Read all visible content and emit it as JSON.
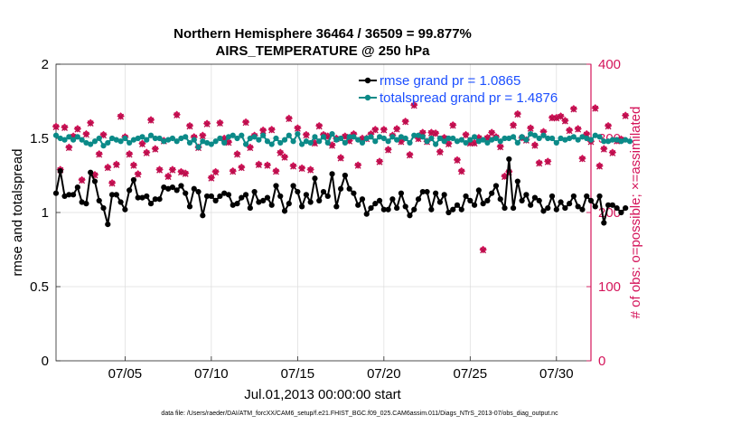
{
  "chart_data": {
    "type": "line",
    "title": [
      "Northern Hemisphere 36464 / 36509 = 99.877%",
      "AIRS_TEMPERATURE @ 250 hPa"
    ],
    "xlabel": "Jul.01,2013 00:00:00 start",
    "ylabel_left": "rmse and totalspread",
    "ylabel_right": "# of obs: o=possible; ×=assimilated",
    "xlim": [
      1,
      32
    ],
    "ylim_left": [
      0,
      2
    ],
    "ylim_right": [
      0,
      400
    ],
    "x_ticks": [
      {
        "value": 5,
        "label": "07/05"
      },
      {
        "value": 10,
        "label": "07/10"
      },
      {
        "value": 15,
        "label": "07/15"
      },
      {
        "value": 20,
        "label": "07/20"
      },
      {
        "value": 25,
        "label": "07/25"
      },
      {
        "value": 30,
        "label": "07/30"
      }
    ],
    "y_ticks_left": [
      "0",
      "0.5",
      "1",
      "1.5",
      "2"
    ],
    "y_ticks_right": [
      "0",
      "100",
      "200",
      "300",
      "400"
    ],
    "colors": {
      "rmse": "#000000",
      "spread": "#0b8a88",
      "obs": "#d4145a",
      "legend_text": "#1c4fff",
      "grid": "#dcdcdc"
    },
    "series": [
      {
        "name": "rmse grand pr = 1.0865",
        "x_start": 1.0,
        "x_step": 0.25,
        "values": [
          1.13,
          1.28,
          1.11,
          1.12,
          1.12,
          1.17,
          1.07,
          1.06,
          1.27,
          1.21,
          1.08,
          1.03,
          0.92,
          1.12,
          1.12,
          1.07,
          1.02,
          1.15,
          1.22,
          1.1,
          1.1,
          1.11,
          1.06,
          1.09,
          1.09,
          1.17,
          1.16,
          1.17,
          1.15,
          1.18,
          1.13,
          1.04,
          1.16,
          1.14,
          0.98,
          1.11,
          1.11,
          1.08,
          1.11,
          1.13,
          1.12,
          1.05,
          1.06,
          1.1,
          1.12,
          1.03,
          1.14,
          1.07,
          1.08,
          1.1,
          1.05,
          1.18,
          1.11,
          1.01,
          1.06,
          1.18,
          1.14,
          1.04,
          1.12,
          1.07,
          1.23,
          1.08,
          1.14,
          1.11,
          1.26,
          1.04,
          1.16,
          1.25,
          1.16,
          1.13,
          1.05,
          1.09,
          0.99,
          1.03,
          1.06,
          1.08,
          1.02,
          1.02,
          1.09,
          1.03,
          1.13,
          1.04,
          0.98,
          1.02,
          1.09,
          1.14,
          1.14,
          1.02,
          1.13,
          1.07,
          1.12,
          1.0,
          1.02,
          1.05,
          1.02,
          1.11,
          1.08,
          1.05,
          1.15,
          1.06,
          1.08,
          1.13,
          1.18,
          1.09,
          1.03,
          1.36,
          1.03,
          1.21,
          1.08,
          1.12,
          1.05,
          1.1,
          1.08,
          1.01,
          1.03,
          1.11,
          1.02,
          1.07,
          1.03,
          1.06,
          1.11,
          1.04,
          1.02,
          1.11,
          1.08,
          1.04,
          1.11,
          0.93,
          1.05,
          1.05,
          1.03,
          1.0,
          1.03
        ]
      },
      {
        "name": "totalspread grand pr = 1.4876",
        "x_start": 1.0,
        "x_step": 0.25,
        "values": [
          1.52,
          1.5,
          1.49,
          1.51,
          1.49,
          1.51,
          1.49,
          1.47,
          1.46,
          1.48,
          1.5,
          1.45,
          1.47,
          1.5,
          1.49,
          1.48,
          1.5,
          1.47,
          1.49,
          1.5,
          1.51,
          1.49,
          1.52,
          1.5,
          1.5,
          1.48,
          1.49,
          1.5,
          1.48,
          1.5,
          1.51,
          1.47,
          1.49,
          1.44,
          1.48,
          1.47,
          1.46,
          1.48,
          1.5,
          1.47,
          1.51,
          1.52,
          1.5,
          1.52,
          1.46,
          1.5,
          1.51,
          1.49,
          1.52,
          1.48,
          1.46,
          1.5,
          1.47,
          1.49,
          1.52,
          1.48,
          1.53,
          1.46,
          1.48,
          1.47,
          1.51,
          1.48,
          1.51,
          1.47,
          1.53,
          1.49,
          1.5,
          1.47,
          1.51,
          1.51,
          1.49,
          1.47,
          1.5,
          1.51,
          1.48,
          1.51,
          1.5,
          1.48,
          1.51,
          1.49,
          1.51,
          1.5,
          1.47,
          1.52,
          1.52,
          1.51,
          1.48,
          1.5,
          1.46,
          1.5,
          1.48,
          1.5,
          1.5,
          1.48,
          1.49,
          1.47,
          1.49,
          1.51,
          1.48,
          1.49,
          1.47,
          1.49,
          1.5,
          1.48,
          1.5,
          1.5,
          1.51,
          1.47,
          1.51,
          1.49,
          1.53,
          1.52,
          1.5,
          1.52,
          1.5,
          1.5,
          1.47,
          1.5,
          1.49,
          1.5,
          1.51,
          1.49,
          1.51,
          1.5,
          1.49,
          1.52,
          1.51,
          1.48,
          1.48,
          1.49,
          1.49,
          1.48,
          1.49,
          1.48
        ]
      },
      {
        "name": "# obs possible (right axis)",
        "x_start": 1.0,
        "x_step": 0.25,
        "values": [
          316,
          258,
          315,
          288,
          303,
          313,
          244,
          306,
          321,
          251,
          279,
          305,
          261,
          240,
          265,
          330,
          302,
          279,
          264,
          252,
          293,
          281,
          325,
          286,
          258,
          297,
          249,
          258,
          332,
          255,
          253,
          317,
          302,
          288,
          304,
          320,
          247,
          255,
          321,
          300,
          295,
          256,
          279,
          261,
          322,
          288,
          304,
          265,
          311,
          264,
          312,
          256,
          281,
          275,
          327,
          263,
          314,
          260,
          305,
          258,
          294,
          317,
          305,
          303,
          291,
          300,
          274,
          303,
          297,
          306,
          264,
          300,
          300,
          306,
          312,
          269,
          312,
          285,
          304,
          313,
          296,
          323,
          278,
          345,
          300,
          308,
          296,
          308,
          307,
          282,
          301,
          293,
          318,
          271,
          256,
          305,
          294,
          294,
          301,
          150,
          301,
          308,
          302,
          289,
          249,
          255,
          318,
          333,
          301,
          298,
          314,
          291,
          267,
          309,
          269,
          328,
          328,
          330,
          324,
          311,
          340,
          313,
          273,
          306,
          296,
          341,
          263,
          286,
          317,
          281,
          297,
          299,
          331
        ]
      },
      {
        "name": "# obs assimilated (right axis)",
        "x_start": 1.0,
        "x_step": 0.25,
        "values": [
          315,
          257,
          314,
          287,
          302,
          312,
          243,
          305,
          320,
          250,
          278,
          304,
          260,
          239,
          264,
          329,
          301,
          278,
          263,
          251,
          292,
          280,
          324,
          285,
          257,
          296,
          248,
          257,
          331,
          254,
          252,
          316,
          301,
          287,
          303,
          319,
          246,
          254,
          320,
          299,
          294,
          255,
          278,
          260,
          321,
          287,
          303,
          264,
          310,
          263,
          311,
          255,
          280,
          274,
          326,
          262,
          313,
          259,
          304,
          257,
          293,
          316,
          304,
          302,
          290,
          299,
          273,
          302,
          296,
          305,
          263,
          299,
          299,
          305,
          311,
          268,
          311,
          284,
          303,
          312,
          295,
          322,
          277,
          344,
          299,
          307,
          295,
          307,
          306,
          281,
          300,
          292,
          317,
          270,
          255,
          304,
          293,
          293,
          300,
          149,
          300,
          307,
          301,
          288,
          248,
          254,
          317,
          332,
          300,
          297,
          313,
          290,
          266,
          308,
          268,
          327,
          327,
          329,
          323,
          310,
          339,
          312,
          272,
          305,
          295,
          340,
          262,
          285,
          316,
          280,
          296,
          298,
          330
        ]
      }
    ]
  },
  "footer": "data file: /Users/raeder/DAI/ATM_forcXX/CAM6_setup/f.e21.FHIST_BGC.f09_025.CAM6assim.011/Diags_NTrS_2013-07/obs_diag_output.nc"
}
